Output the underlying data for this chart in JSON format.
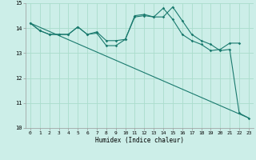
{
  "title": "",
  "xlabel": "Humidex (Indice chaleur)",
  "bg_color": "#cceee8",
  "grid_color": "#aaddcc",
  "line_color": "#1a7a6e",
  "xlim": [
    -0.5,
    23.5
  ],
  "ylim": [
    10,
    15
  ],
  "yticks": [
    10,
    11,
    12,
    13,
    14,
    15
  ],
  "xticks": [
    0,
    1,
    2,
    3,
    4,
    5,
    6,
    7,
    8,
    9,
    10,
    11,
    12,
    13,
    14,
    15,
    16,
    17,
    18,
    19,
    20,
    21,
    22,
    23
  ],
  "line1_x": [
    0,
    1,
    2,
    3,
    4,
    5,
    6,
    7,
    8,
    9,
    10,
    11,
    12,
    13,
    14,
    15,
    16,
    17,
    18,
    19,
    20,
    21,
    22
  ],
  "line1_y": [
    14.2,
    13.9,
    13.75,
    13.75,
    13.75,
    14.05,
    13.75,
    13.8,
    13.3,
    13.3,
    13.55,
    14.5,
    14.55,
    14.45,
    14.8,
    14.35,
    13.75,
    13.5,
    13.35,
    13.1,
    13.15,
    13.4,
    13.4
  ],
  "line2_x": [
    0,
    1,
    2,
    3,
    4,
    5,
    6,
    7,
    8,
    9,
    10,
    11,
    12,
    13,
    14,
    15,
    16,
    17,
    18,
    19,
    20,
    21,
    22,
    23
  ],
  "line2_y": [
    14.2,
    13.9,
    13.75,
    13.75,
    13.75,
    14.05,
    13.75,
    13.85,
    13.5,
    13.5,
    13.55,
    14.45,
    14.5,
    14.45,
    14.45,
    14.85,
    14.3,
    13.75,
    13.5,
    13.35,
    13.1,
    13.15,
    10.6,
    10.4
  ],
  "line3_x": [
    0,
    23
  ],
  "line3_y": [
    14.2,
    10.4
  ]
}
